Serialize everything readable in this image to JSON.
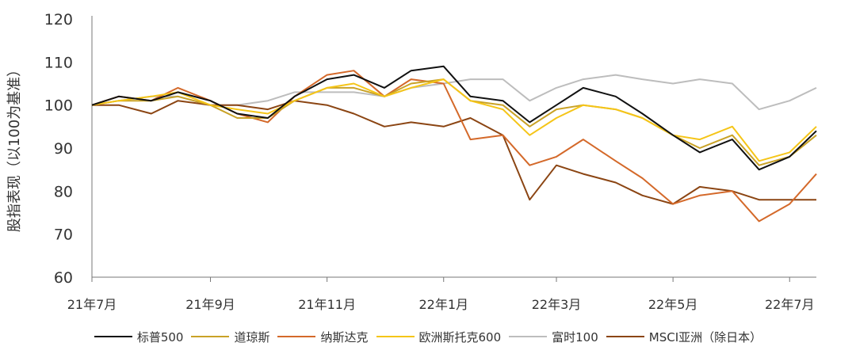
{
  "chart_data": {
    "type": "line",
    "title": "",
    "xlabel": "",
    "ylabel": "股指表现（以100为基准）",
    "ylim": [
      60,
      120
    ],
    "yticks": [
      60,
      70,
      80,
      90,
      100,
      110,
      120
    ],
    "xlim": [
      "2021-07-01",
      "2022-07-15"
    ],
    "xticks": [
      {
        "date": "2021-07-01",
        "label": "21年7月"
      },
      {
        "date": "2021-09-01",
        "label": "21年9月"
      },
      {
        "date": "2021-11-01",
        "label": "21年11月"
      },
      {
        "date": "2022-01-01",
        "label": "22年1月"
      },
      {
        "date": "2022-03-01",
        "label": "22年3月"
      },
      {
        "date": "2022-05-01",
        "label": "22年5月"
      },
      {
        "date": "2022-07-01",
        "label": "22年7月"
      }
    ],
    "grid": false,
    "legend_position": "bottom",
    "series": [
      {
        "name": "标普500",
        "color": "#111111",
        "points": [
          [
            "2021-07-01",
            100
          ],
          [
            "2021-07-15",
            102
          ],
          [
            "2021-08-01",
            101
          ],
          [
            "2021-08-15",
            103
          ],
          [
            "2021-09-01",
            101
          ],
          [
            "2021-09-15",
            98
          ],
          [
            "2021-10-01",
            97
          ],
          [
            "2021-10-15",
            102
          ],
          [
            "2021-11-01",
            106
          ],
          [
            "2021-11-15",
            107
          ],
          [
            "2021-12-01",
            104
          ],
          [
            "2021-12-15",
            108
          ],
          [
            "2022-01-01",
            109
          ],
          [
            "2022-01-15",
            102
          ],
          [
            "2022-02-01",
            101
          ],
          [
            "2022-02-15",
            96
          ],
          [
            "2022-03-01",
            100
          ],
          [
            "2022-03-15",
            104
          ],
          [
            "2022-04-01",
            102
          ],
          [
            "2022-04-15",
            98
          ],
          [
            "2022-05-01",
            93
          ],
          [
            "2022-05-15",
            89
          ],
          [
            "2022-06-01",
            92
          ],
          [
            "2022-06-15",
            85
          ],
          [
            "2022-07-01",
            88
          ],
          [
            "2022-07-15",
            94
          ]
        ]
      },
      {
        "name": "道琼斯",
        "color": "#c9a227",
        "points": [
          [
            "2021-07-01",
            100
          ],
          [
            "2021-07-15",
            101
          ],
          [
            "2021-08-01",
            101
          ],
          [
            "2021-08-15",
            102
          ],
          [
            "2021-09-01",
            100
          ],
          [
            "2021-09-15",
            97
          ],
          [
            "2021-10-01",
            97
          ],
          [
            "2021-10-15",
            101
          ],
          [
            "2021-11-01",
            104
          ],
          [
            "2021-11-15",
            104
          ],
          [
            "2021-12-01",
            102
          ],
          [
            "2021-12-15",
            105
          ],
          [
            "2022-01-01",
            106
          ],
          [
            "2022-01-15",
            101
          ],
          [
            "2022-02-01",
            100
          ],
          [
            "2022-02-15",
            95
          ],
          [
            "2022-03-01",
            99
          ],
          [
            "2022-03-15",
            100
          ],
          [
            "2022-04-01",
            99
          ],
          [
            "2022-04-15",
            97
          ],
          [
            "2022-05-01",
            93
          ],
          [
            "2022-05-15",
            90
          ],
          [
            "2022-06-01",
            93
          ],
          [
            "2022-06-15",
            86
          ],
          [
            "2022-07-01",
            88
          ],
          [
            "2022-07-15",
            93
          ]
        ]
      },
      {
        "name": "纳斯达克",
        "color": "#d4692a",
        "points": [
          [
            "2021-07-01",
            100
          ],
          [
            "2021-07-15",
            102
          ],
          [
            "2021-08-01",
            101
          ],
          [
            "2021-08-15",
            104
          ],
          [
            "2021-09-01",
            101
          ],
          [
            "2021-09-15",
            98
          ],
          [
            "2021-10-01",
            96
          ],
          [
            "2021-10-15",
            102
          ],
          [
            "2021-11-01",
            107
          ],
          [
            "2021-11-15",
            108
          ],
          [
            "2021-12-01",
            102
          ],
          [
            "2021-12-15",
            106
          ],
          [
            "2022-01-01",
            105
          ],
          [
            "2022-01-15",
            92
          ],
          [
            "2022-02-01",
            93
          ],
          [
            "2022-02-15",
            86
          ],
          [
            "2022-03-01",
            88
          ],
          [
            "2022-03-15",
            92
          ],
          [
            "2022-04-01",
            87
          ],
          [
            "2022-04-15",
            83
          ],
          [
            "2022-05-01",
            77
          ],
          [
            "2022-05-15",
            79
          ],
          [
            "2022-06-01",
            80
          ],
          [
            "2022-06-15",
            73
          ],
          [
            "2022-07-01",
            77
          ],
          [
            "2022-07-15",
            84
          ]
        ]
      },
      {
        "name": "欧洲斯托克600",
        "color": "#f5c518",
        "points": [
          [
            "2021-07-01",
            100
          ],
          [
            "2021-07-15",
            101
          ],
          [
            "2021-08-01",
            102
          ],
          [
            "2021-08-15",
            103
          ],
          [
            "2021-09-01",
            100
          ],
          [
            "2021-09-15",
            99
          ],
          [
            "2021-10-01",
            98
          ],
          [
            "2021-10-15",
            101
          ],
          [
            "2021-11-01",
            104
          ],
          [
            "2021-11-15",
            105
          ],
          [
            "2021-12-01",
            102
          ],
          [
            "2021-12-15",
            104
          ],
          [
            "2022-01-01",
            106
          ],
          [
            "2022-01-15",
            101
          ],
          [
            "2022-02-01",
            99
          ],
          [
            "2022-02-15",
            93
          ],
          [
            "2022-03-01",
            97
          ],
          [
            "2022-03-15",
            100
          ],
          [
            "2022-04-01",
            99
          ],
          [
            "2022-04-15",
            97
          ],
          [
            "2022-05-01",
            93
          ],
          [
            "2022-05-15",
            92
          ],
          [
            "2022-06-01",
            95
          ],
          [
            "2022-06-15",
            87
          ],
          [
            "2022-07-01",
            89
          ],
          [
            "2022-07-15",
            95
          ]
        ]
      },
      {
        "name": "富时100",
        "color": "#bdbdbd",
        "points": [
          [
            "2021-07-01",
            100
          ],
          [
            "2021-07-15",
            101
          ],
          [
            "2021-08-01",
            102
          ],
          [
            "2021-08-15",
            102
          ],
          [
            "2021-09-01",
            100
          ],
          [
            "2021-09-15",
            100
          ],
          [
            "2021-10-01",
            101
          ],
          [
            "2021-10-15",
            103
          ],
          [
            "2021-11-01",
            103
          ],
          [
            "2021-11-15",
            103
          ],
          [
            "2021-12-01",
            102
          ],
          [
            "2021-12-15",
            104
          ],
          [
            "2022-01-01",
            105
          ],
          [
            "2022-01-15",
            106
          ],
          [
            "2022-02-01",
            106
          ],
          [
            "2022-02-15",
            101
          ],
          [
            "2022-03-01",
            104
          ],
          [
            "2022-03-15",
            106
          ],
          [
            "2022-04-01",
            107
          ],
          [
            "2022-04-15",
            106
          ],
          [
            "2022-05-01",
            105
          ],
          [
            "2022-05-15",
            106
          ],
          [
            "2022-06-01",
            105
          ],
          [
            "2022-06-15",
            99
          ],
          [
            "2022-07-01",
            101
          ],
          [
            "2022-07-15",
            104
          ]
        ]
      },
      {
        "name": "MSCI亚洲（除日本）",
        "color": "#8b4513",
        "points": [
          [
            "2021-07-01",
            100
          ],
          [
            "2021-07-15",
            100
          ],
          [
            "2021-08-01",
            98
          ],
          [
            "2021-08-15",
            101
          ],
          [
            "2021-09-01",
            100
          ],
          [
            "2021-09-15",
            100
          ],
          [
            "2021-10-01",
            99
          ],
          [
            "2021-10-15",
            101
          ],
          [
            "2021-11-01",
            100
          ],
          [
            "2021-11-15",
            98
          ],
          [
            "2021-12-01",
            95
          ],
          [
            "2021-12-15",
            96
          ],
          [
            "2022-01-01",
            95
          ],
          [
            "2022-01-15",
            97
          ],
          [
            "2022-02-01",
            93
          ],
          [
            "2022-02-15",
            78
          ],
          [
            "2022-03-01",
            86
          ],
          [
            "2022-03-15",
            84
          ],
          [
            "2022-04-01",
            82
          ],
          [
            "2022-04-15",
            79
          ],
          [
            "2022-05-01",
            77
          ],
          [
            "2022-05-15",
            81
          ],
          [
            "2022-06-01",
            80
          ],
          [
            "2022-06-15",
            78
          ],
          [
            "2022-07-01",
            78
          ],
          [
            "2022-07-15",
            78
          ]
        ]
      }
    ]
  }
}
